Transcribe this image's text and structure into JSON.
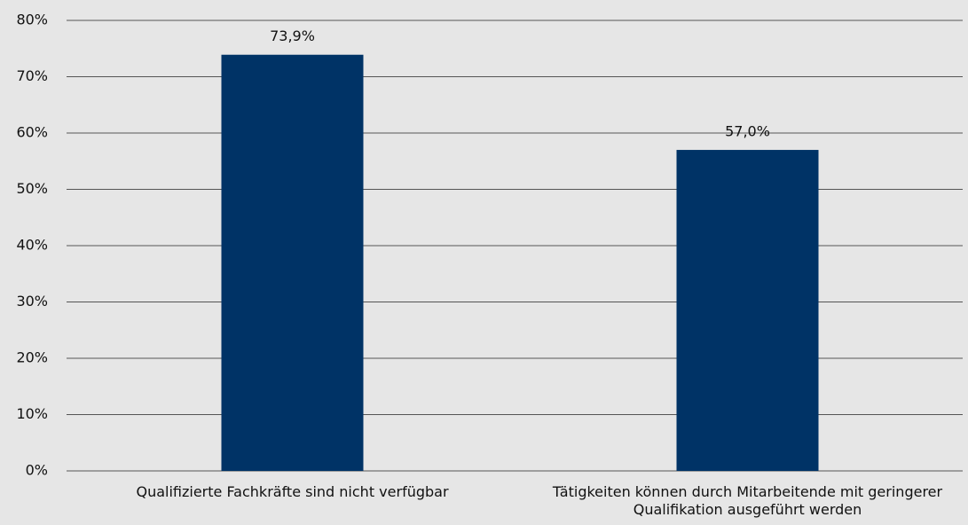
{
  "chart_data": {
    "type": "bar",
    "categories": [
      "Qualifizierte Fachkräfte sind nicht verfügbar",
      "Tätigkeiten können durch Mitarbeitende mit geringerer Qualifikation ausgeführt werden"
    ],
    "values": [
      73.9,
      57.0
    ],
    "value_labels": [
      "73,9%",
      "57,0%"
    ],
    "color": "#003366",
    "ylim": [
      0,
      80
    ],
    "yticks": [
      {
        "value": 0,
        "label": "0%"
      },
      {
        "value": 10,
        "label": "10%"
      },
      {
        "value": 20,
        "label": "20%"
      },
      {
        "value": 30,
        "label": "30%"
      },
      {
        "value": 40,
        "label": "40%"
      },
      {
        "value": 50,
        "label": "50%"
      },
      {
        "value": 60,
        "label": "60%"
      },
      {
        "value": 70,
        "label": "70%"
      },
      {
        "value": 80,
        "label": "80%"
      }
    ],
    "grid": true
  }
}
